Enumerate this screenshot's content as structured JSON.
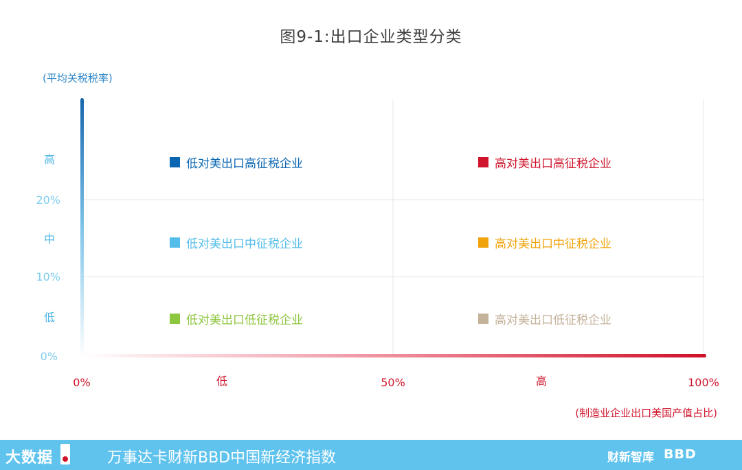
{
  "title": "图9-1:出口企业类型分类",
  "y_axis": {
    "title": "(平均关税税率)",
    "levels": [
      "高",
      "中",
      "低"
    ],
    "ticks": [
      "20%",
      "10%",
      "0%"
    ]
  },
  "x_axis": {
    "title": "(制造业企业出口美国产值占比)",
    "levels": [
      "低",
      "高"
    ],
    "ticks": [
      "0%",
      "50%",
      "100%"
    ]
  },
  "quadrants": [
    {
      "label": "低对美出口高征税企业",
      "color": "#0b66b2"
    },
    {
      "label": "高对美出口高征税企业",
      "color": "#d0142c"
    },
    {
      "label": "低对美出口中征税企业",
      "color": "#55bde9"
    },
    {
      "label": "高对美出口中征税企业",
      "color": "#f0a30a"
    },
    {
      "label": "低对美出口低征税企业",
      "color": "#8dc63f"
    },
    {
      "label": "高对美出口低征税企业",
      "color": "#c4b29a"
    }
  ],
  "footer": {
    "brand": "大数据",
    "index_name": "万事达卡财新BBD中国新经济指数",
    "partner_1": "财新智库",
    "partner_2": "BBD"
  }
}
